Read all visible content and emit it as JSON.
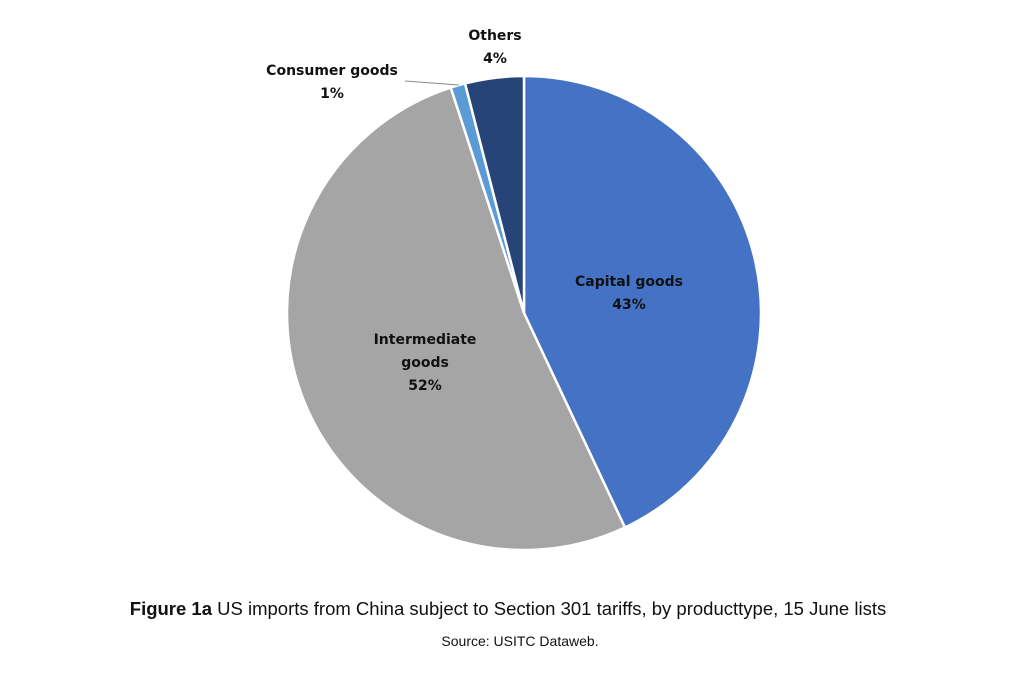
{
  "chart_data": {
    "type": "pie",
    "start": "top",
    "direction": "clockwise",
    "slices": [
      {
        "name": "Capital goods",
        "value": 43,
        "label_lines": [
          "Capital goods",
          "43%"
        ],
        "color": "#4472C4"
      },
      {
        "name": "Intermediate goods",
        "value": 52,
        "label_lines": [
          "Intermediate",
          "goods",
          "52%"
        ],
        "color": "#A5A5A5"
      },
      {
        "name": "Consumer goods",
        "value": 1,
        "label_lines": [
          "Consumer goods",
          "1%"
        ],
        "color": "#5B9BD5"
      },
      {
        "name": "Others",
        "value": 4,
        "label_lines": [
          "Others",
          "4%"
        ],
        "color": "#264478"
      }
    ]
  },
  "caption": {
    "figure_label": "Figure 1a",
    "text": " US imports from China subject to Section 301 tariffs, by producttype, 15 June lists"
  },
  "source": "Source:  USITC Dataweb."
}
